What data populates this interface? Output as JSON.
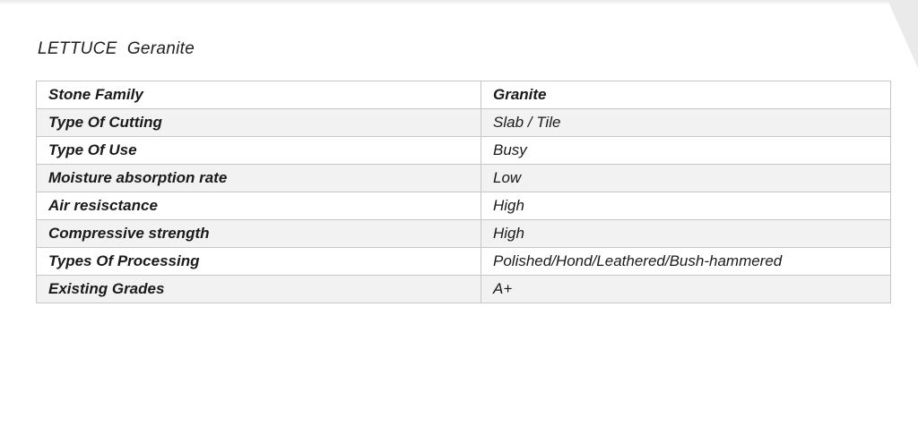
{
  "page": {
    "title": "LETTUCE  Geranite"
  },
  "table": {
    "rows": [
      {
        "label": "Stone Family",
        "value": "Granite"
      },
      {
        "label": "Type Of Cutting",
        "value": "Slab / Tile"
      },
      {
        "label": "Type Of Use",
        "value": "Busy"
      },
      {
        "label": "Moisture absorption rate",
        "value": "Low"
      },
      {
        "label": "Air resisctance",
        "value": "High"
      },
      {
        "label": "Compressive strength",
        "value": "High"
      },
      {
        "label": "Types Of Processing",
        "value": "Polished/Hond/Leathered/Bush-hammered"
      },
      {
        "label": "Existing Grades",
        "value": "A+"
      }
    ]
  },
  "colors": {
    "row_alt_background": "#f2f2f2",
    "table_border": "#c6c6c6",
    "text": "#1a1a1a",
    "page_edge": "#eaeaea"
  }
}
